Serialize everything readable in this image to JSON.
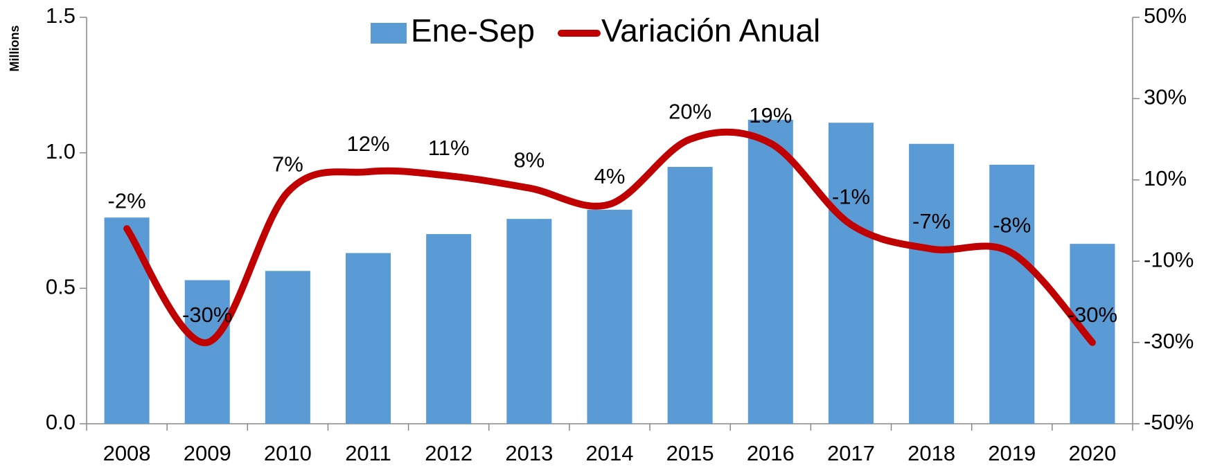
{
  "chart_data": {
    "type": "bar_line",
    "ylabel": "Millions",
    "categories": [
      "2008",
      "2009",
      "2010",
      "2011",
      "2012",
      "2013",
      "2014",
      "2015",
      "2016",
      "2017",
      "2018",
      "2019",
      "2020"
    ],
    "series": [
      {
        "name": "Ene-Sep",
        "type": "bar",
        "color": "#5b9bd5",
        "values": [
          0.761,
          0.53,
          0.564,
          0.63,
          0.7,
          0.756,
          0.79,
          0.948,
          1.122,
          1.111,
          1.033,
          0.956,
          0.664
        ]
      },
      {
        "name": "Variación Anual",
        "type": "line",
        "axis": "y2",
        "color": "#c00000",
        "smooth": true,
        "values": [
          -2,
          -30,
          7,
          12,
          11,
          8,
          4,
          20,
          19,
          -1,
          -7,
          -8,
          -30
        ],
        "value_labels": [
          "-2%",
          "-30%",
          "7%",
          "12%",
          "11%",
          "8%",
          "4%",
          "20%",
          "19%",
          "-1%",
          "-7%",
          "-8%",
          "-30%"
        ]
      }
    ],
    "ylim": [
      0,
      1.5
    ],
    "yticks": [
      {
        "value": 0,
        "label": "0.0"
      },
      0.5,
      {
        "value": 1,
        "label": "1.0"
      },
      {
        "value": 1.5,
        "label": "1.5"
      }
    ],
    "y2lim": [
      -50,
      50
    ],
    "y2ticks": [
      {
        "value": -50,
        "label": "-50%"
      },
      {
        "value": -30,
        "label": "-30%"
      },
      {
        "value": -10,
        "label": "-10%"
      },
      {
        "value": 10,
        "label": "10%"
      },
      {
        "value": 30,
        "label": "30%"
      },
      {
        "value": 50,
        "label": "50%"
      }
    ],
    "legend": "top"
  }
}
